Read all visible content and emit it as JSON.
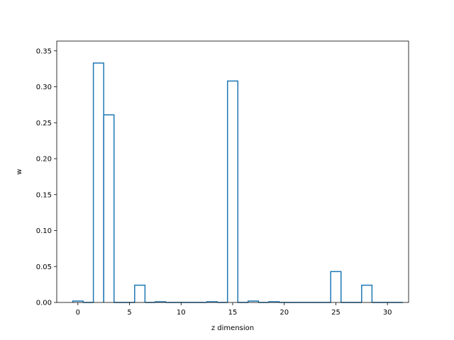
{
  "chart_data": {
    "type": "bar",
    "style": "step-histogram",
    "xlabel": "z dimension",
    "ylabel": "w",
    "xlim": [
      -2.05,
      32.05
    ],
    "ylim": [
      0,
      0.3636
    ],
    "xticks": [
      0,
      5,
      10,
      15,
      20,
      25,
      30
    ],
    "yticks": [
      0.0,
      0.05,
      0.1,
      0.15,
      0.2,
      0.25,
      0.3,
      0.35
    ],
    "ytick_labels": [
      "0.00",
      "0.05",
      "0.10",
      "0.15",
      "0.20",
      "0.25",
      "0.30",
      "0.35"
    ],
    "x": [
      0,
      1,
      2,
      3,
      4,
      5,
      6,
      7,
      8,
      9,
      10,
      11,
      12,
      13,
      14,
      15,
      16,
      17,
      18,
      19,
      20,
      21,
      22,
      23,
      24,
      25,
      26,
      27,
      28,
      29,
      30,
      31
    ],
    "values": [
      0.002,
      0.0,
      0.333,
      0.261,
      0.0,
      0.0,
      0.024,
      0.0,
      0.001,
      0.0,
      0.0,
      0.0,
      0.0,
      0.001,
      0.0,
      0.308,
      0.0,
      0.002,
      0.0,
      0.001,
      0.0,
      0.0,
      0.0,
      0.0,
      0.0,
      0.043,
      0.0,
      0.0,
      0.024,
      0.0,
      0.0,
      0.0
    ],
    "color": "#1f77b4",
    "grid": false,
    "legend": "none"
  }
}
